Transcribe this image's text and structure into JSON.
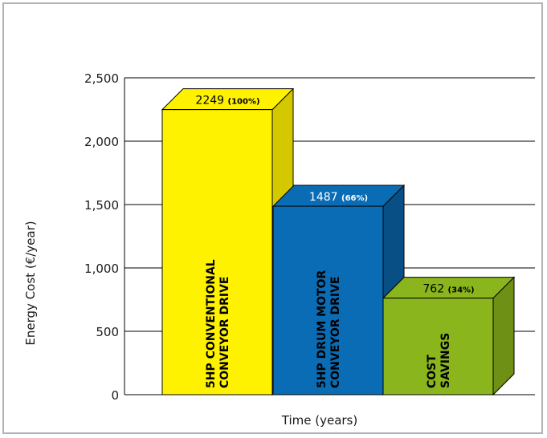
{
  "chart_data": {
    "type": "bar",
    "title": "",
    "xlabel": "Time (years)",
    "ylabel": "Energy Cost (€/year)",
    "ylim": [
      0,
      2500
    ],
    "yticks": [
      0,
      500,
      1000,
      1500,
      2000,
      2500
    ],
    "ytick_labels": [
      "0",
      "500",
      "1,000",
      "1,500",
      "2,000",
      "2,500"
    ],
    "grid": true,
    "categories": [
      "5HP CONVENTIONAL CONVEYOR DRIVE",
      "5HP DRUM MOTOR CONVEYOR DRIVE",
      "COST SAVINGS"
    ],
    "bar_label_lines": [
      [
        "5HP CONVENTIONAL",
        "CONVEYOR DRIVE"
      ],
      [
        "5HP DRUM MOTOR",
        "CONVEYOR DRIVE"
      ],
      [
        "COST",
        "SAVINGS"
      ]
    ],
    "values": [
      2249,
      1487,
      762
    ],
    "value_labels": [
      "2249",
      "1487",
      "762"
    ],
    "percent_labels": [
      "(100%)",
      "(66%)",
      "(34%)"
    ],
    "colors": [
      "#fff200",
      "#0a6cb5",
      "#8ab51c"
    ],
    "top_colors": [
      "#fff200",
      "#0a6cb5",
      "#8ab51c"
    ],
    "side_colors": [
      "#d4c900",
      "#084f86",
      "#6d9015"
    ],
    "value_text_colors": [
      "#000000",
      "#ffffff",
      "#000000"
    ]
  }
}
